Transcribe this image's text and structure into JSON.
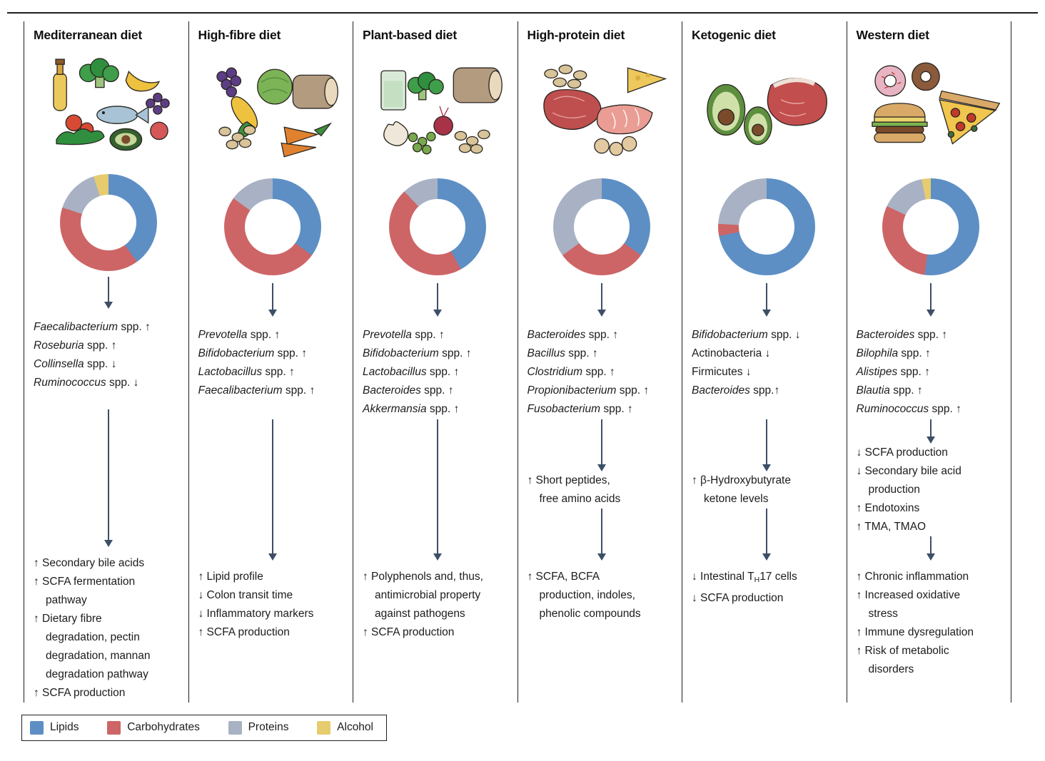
{
  "colors": {
    "arrow": "#3d4f66",
    "divider": "#1f1f1f",
    "text": "#1e1e1e"
  },
  "legend": {
    "items": [
      {
        "label": "Lipids",
        "color": "#5d8fc5"
      },
      {
        "label": "Carbohydrates",
        "color": "#cd6566"
      },
      {
        "label": "Proteins",
        "color": "#a9b1c4"
      },
      {
        "label": "Alcohol",
        "color": "#e6cb6f"
      }
    ]
  },
  "chart_data": {
    "type": "pie",
    "variant": "donut",
    "legend_position": "bottom",
    "legend_entries": [
      "Lipids",
      "Carbohydrates",
      "Proteins",
      "Alcohol"
    ],
    "series": [
      {
        "name": "Mediterranean diet",
        "values": {
          "Lipids": 40,
          "Carbohydrates": 40,
          "Proteins": 15,
          "Alcohol": 5
        }
      },
      {
        "name": "High-fibre diet",
        "values": {
          "Lipids": 35,
          "Carbohydrates": 50,
          "Proteins": 15,
          "Alcohol": 0
        }
      },
      {
        "name": "Plant-based diet",
        "values": {
          "Lipids": 42,
          "Carbohydrates": 46,
          "Proteins": 12,
          "Alcohol": 0
        }
      },
      {
        "name": "High-protein diet",
        "values": {
          "Lipids": 35,
          "Carbohydrates": 30,
          "Proteins": 35,
          "Alcohol": 0
        }
      },
      {
        "name": "Ketogenic diet",
        "values": {
          "Lipids": 72,
          "Carbohydrates": 4,
          "Proteins": 24,
          "Alcohol": 0
        }
      },
      {
        "name": "Western diet",
        "values": {
          "Lipids": 52,
          "Carbohydrates": 30,
          "Proteins": 15,
          "Alcohol": 3
        }
      }
    ]
  },
  "columns": [
    {
      "title": "Mediterranean diet",
      "macros": [
        {
          "label": "Lipids",
          "pct": 40
        },
        {
          "label": "Carbohydrates",
          "pct": 40
        },
        {
          "label": "Proteins",
          "pct": 15
        },
        {
          "label": "Alcohol",
          "pct": 5
        }
      ],
      "bacteria": [
        [
          {
            "t": "Faecalibacterium",
            "s": "i"
          },
          {
            "t": " spp. ↑"
          }
        ],
        [
          {
            "t": "Roseburia",
            "s": "i"
          },
          {
            "t": " spp. ↑"
          }
        ],
        [
          {
            "t": "Collinsella",
            "s": "i"
          },
          {
            "t": " spp. ↓"
          }
        ],
        [
          {
            "t": "Ruminococcus",
            "s": "i"
          },
          {
            "t": " spp. ↓"
          }
        ]
      ],
      "mid": [],
      "final": [
        [
          {
            "t": "↑ Secondary bile acids"
          }
        ],
        [
          {
            "t": "↑ SCFA fermentation"
          },
          {
            "br": true
          },
          {
            "t": "pathway"
          }
        ],
        [
          {
            "t": "↑ Dietary fibre"
          },
          {
            "br": true
          },
          {
            "t": "degradation, pectin"
          },
          {
            "br": true
          },
          {
            "t": "degradation, mannan"
          },
          {
            "br": true
          },
          {
            "t": "degradation pathway"
          }
        ],
        [
          {
            "t": "↑ SCFA production"
          }
        ]
      ]
    },
    {
      "title": "High-fibre diet",
      "macros": [
        {
          "label": "Lipids",
          "pct": 35
        },
        {
          "label": "Carbohydrates",
          "pct": 50
        },
        {
          "label": "Proteins",
          "pct": 15
        }
      ],
      "bacteria": [
        [
          {
            "t": "Prevotella",
            "s": "i"
          },
          {
            "t": " spp. ↑"
          }
        ],
        [
          {
            "t": "Bifidobacterium",
            "s": "i"
          },
          {
            "t": " spp. ↑"
          }
        ],
        [
          {
            "t": "Lactobacillus",
            "s": "i"
          },
          {
            "t": " spp. ↑"
          }
        ],
        [
          {
            "t": "Faecalibacterium",
            "s": "i"
          },
          {
            "t": " spp. ↑"
          }
        ]
      ],
      "mid": [],
      "final": [
        [
          {
            "t": "↑ Lipid profile"
          }
        ],
        [
          {
            "t": "↓ Colon transit time"
          }
        ],
        [
          {
            "t": "↓ Inflammatory markers"
          }
        ],
        [
          {
            "t": "↑ SCFA production"
          }
        ]
      ]
    },
    {
      "title": "Plant-based diet",
      "macros": [
        {
          "label": "Lipids",
          "pct": 42
        },
        {
          "label": "Carbohydrates",
          "pct": 46
        },
        {
          "label": "Proteins",
          "pct": 12
        }
      ],
      "bacteria": [
        [
          {
            "t": "Prevotella",
            "s": "i"
          },
          {
            "t": " spp. ↑"
          }
        ],
        [
          {
            "t": "Bifidobacterium",
            "s": "i"
          },
          {
            "t": " spp. ↑"
          }
        ],
        [
          {
            "t": "Lactobacillus",
            "s": "i"
          },
          {
            "t": " spp. ↑"
          }
        ],
        [
          {
            "t": "Bacteroides",
            "s": "i"
          },
          {
            "t": " spp. ↑"
          }
        ],
        [
          {
            "t": "Akkermansia",
            "s": "i"
          },
          {
            "t": " spp. ↑"
          }
        ]
      ],
      "mid": [],
      "final": [
        [
          {
            "t": "↑ Polyphenols and, thus,"
          },
          {
            "br": true
          },
          {
            "t": "antimicrobial property"
          },
          {
            "br": true
          },
          {
            "t": "against pathogens"
          }
        ],
        [
          {
            "t": "↑ SCFA production"
          }
        ]
      ]
    },
    {
      "title": "High-protein diet",
      "macros": [
        {
          "label": "Lipids",
          "pct": 35
        },
        {
          "label": "Carbohydrates",
          "pct": 30
        },
        {
          "label": "Proteins",
          "pct": 35
        }
      ],
      "bacteria": [
        [
          {
            "t": "Bacteroides",
            "s": "i"
          },
          {
            "t": " spp. ↑"
          }
        ],
        [
          {
            "t": "Bacillus",
            "s": "i"
          },
          {
            "t": " spp. ↑"
          }
        ],
        [
          {
            "t": "Clostridium",
            "s": "i"
          },
          {
            "t": " spp. ↑"
          }
        ],
        [
          {
            "t": "Propionibacterium",
            "s": "i"
          },
          {
            "t": " spp. ↑"
          }
        ],
        [
          {
            "t": "Fusobacterium",
            "s": "i"
          },
          {
            "t": " spp. ↑"
          }
        ]
      ],
      "mid": [
        [
          {
            "t": "↑ Short peptides,"
          },
          {
            "br": true
          },
          {
            "t": "free amino acids"
          }
        ]
      ],
      "final": [
        [
          {
            "t": "↑ SCFA, BCFA"
          },
          {
            "br": true
          },
          {
            "t": "production, indoles,"
          },
          {
            "br": true
          },
          {
            "t": "phenolic compounds"
          }
        ]
      ]
    },
    {
      "title": "Ketogenic diet",
      "macros": [
        {
          "label": "Lipids",
          "pct": 72
        },
        {
          "label": "Carbohydrates",
          "pct": 4
        },
        {
          "label": "Proteins",
          "pct": 24
        }
      ],
      "bacteria": [
        [
          {
            "t": "Bifidobacterium",
            "s": "i"
          },
          {
            "t": " spp. ↓"
          }
        ],
        [
          {
            "t": "Actinobacteria ↓"
          }
        ],
        [
          {
            "t": "Firmicutes ↓"
          }
        ],
        [
          {
            "t": "Bacteroides",
            "s": "i"
          },
          {
            "t": " spp.↑"
          }
        ]
      ],
      "mid": [
        [
          {
            "t": "↑ β-Hydroxybutyrate"
          },
          {
            "br": true
          },
          {
            "t": "ketone levels"
          }
        ]
      ],
      "final": [
        [
          {
            "t": "↓ Intestinal T"
          },
          {
            "t": "H",
            "s": "sub"
          },
          {
            "t": "17 cells"
          }
        ],
        [
          {
            "t": "↓ SCFA production"
          }
        ]
      ]
    },
    {
      "title": "Western diet",
      "macros": [
        {
          "label": "Lipids",
          "pct": 52
        },
        {
          "label": "Carbohydrates",
          "pct": 30
        },
        {
          "label": "Proteins",
          "pct": 15
        },
        {
          "label": "Alcohol",
          "pct": 3
        }
      ],
      "bacteria": [
        [
          {
            "t": "Bacteroides",
            "s": "i"
          },
          {
            "t": " spp. ↑"
          }
        ],
        [
          {
            "t": "Bilophila",
            "s": "i"
          },
          {
            "t": " spp. ↑"
          }
        ],
        [
          {
            "t": "Alistipes",
            "s": "i"
          },
          {
            "t": " spp. ↑"
          }
        ],
        [
          {
            "t": "Blautia",
            "s": "i"
          },
          {
            "t": " spp. ↑"
          }
        ],
        [
          {
            "t": "Ruminococcus",
            "s": "i"
          },
          {
            "t": " spp. ↑"
          }
        ]
      ],
      "mid": [
        [
          {
            "t": "↓ SCFA production"
          }
        ],
        [
          {
            "t": "↓ Secondary bile acid"
          },
          {
            "br": true
          },
          {
            "t": "production"
          }
        ],
        [
          {
            "t": "↑ Endotoxins"
          }
        ],
        [
          {
            "t": "↑ TMA, TMAO"
          }
        ]
      ],
      "final": [
        [
          {
            "t": "↑ Chronic inflammation"
          }
        ],
        [
          {
            "t": "↑ Increased oxidative"
          },
          {
            "br": true
          },
          {
            "t": "stress"
          }
        ],
        [
          {
            "t": "↑ Immune dysregulation"
          }
        ],
        [
          {
            "t": "↑ Risk of metabolic"
          },
          {
            "br": true
          },
          {
            "t": "disorders"
          }
        ]
      ]
    }
  ]
}
